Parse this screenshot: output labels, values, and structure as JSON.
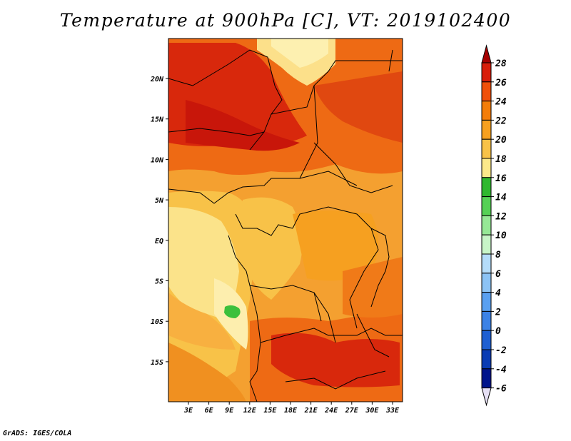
{
  "title": "Temperature at 900hPa [C], VT: 2019102400",
  "credit": "GrADS: IGES/COLA",
  "map": {
    "x_ticks": [
      "3E",
      "6E",
      "9E",
      "12E",
      "15E",
      "18E",
      "21E",
      "24E",
      "27E",
      "30E",
      "33E"
    ],
    "y_ticks": [
      "20N",
      "15N",
      "10N",
      "5N",
      "EQ",
      "5S",
      "10S",
      "15S"
    ]
  },
  "colorbar": {
    "labels": [
      "28",
      "26",
      "24",
      "22",
      "20",
      "18",
      "16",
      "14",
      "12",
      "10",
      "8",
      "6",
      "4",
      "2",
      "0",
      "-2",
      "-4",
      "-6"
    ],
    "colors": [
      "#a50000",
      "#d81e0a",
      "#f0500a",
      "#f47d0a",
      "#f6a020",
      "#f8c248",
      "#fce98a",
      "#2fb82f",
      "#55d155",
      "#96e896",
      "#c8f5c8",
      "#b4dcfa",
      "#8cc3f5",
      "#5aa0f0",
      "#3c82e6",
      "#1e5fd2",
      "#0a3cb4",
      "#00148c",
      "#e6e0f5"
    ]
  }
}
